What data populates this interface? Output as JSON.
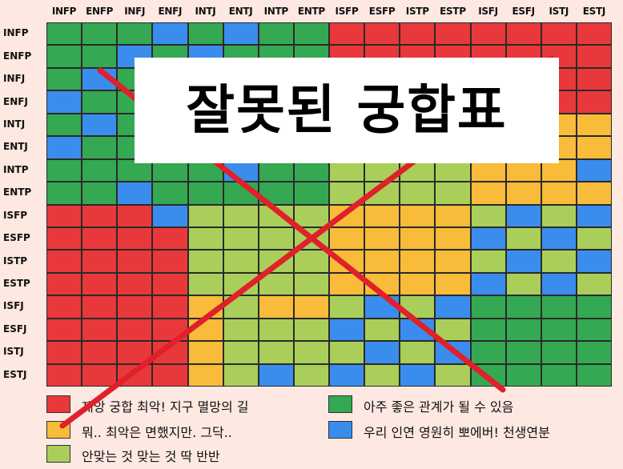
{
  "types": [
    "INFP",
    "ENFP",
    "INFJ",
    "ENFJ",
    "INTJ",
    "ENTJ",
    "INTP",
    "ENTP",
    "ISFP",
    "ESFP",
    "ISTP",
    "ESTP",
    "ISFJ",
    "ESFJ",
    "ISTJ",
    "ESTJ"
  ],
  "colors": {
    "R": "#e8383b",
    "O": "#f8bb3a",
    "L": "#a9cf5a",
    "G": "#34a853",
    "B": "#3b8ded"
  },
  "matrix": [
    "GGGBGBGGRRRRRRRR",
    "GGBGBGGGRRRRRRRR",
    "GBGGGGGBRRRRRRRR",
    "BGGGGGGGBRRRRRRR",
    "GBGGGGGBLLLLOOOO",
    "BGGGGGBGLLLLOOOO",
    "GGGGGBGGLLLLOOOB",
    "GGBGGGGGLLLLOOOO",
    "RRRBLLLLOOOOLBLB",
    "RRRRLLLLOOOOBLBL",
    "RRRRLLLLOOOOLBLB",
    "RRRRLLLLOOOOBLBL",
    "RRRROLOOLBLBGGGG",
    "RRRROLLLBLBLGGGG",
    "RRRROLLLLBLBGGGG",
    "RRRROLBLBLBLGGGG"
  ],
  "legend": [
    {
      "color": "#e8383b",
      "label": "재앙 궁합 최악! 지구 멸망의 길"
    },
    {
      "color": "#f8bb3a",
      "label": "뭐.. 최악은 면했지만. 그닥.."
    },
    {
      "color": "#a9cf5a",
      "label": "안맞는 것 맞는 것 딱 반반"
    },
    {
      "color": "#34a853",
      "label": "아주 좋은 관계가 될 수 있음"
    },
    {
      "color": "#3b8ded",
      "label": "우리 인연 영원히 뽀에버! 천생연분"
    }
  ],
  "overlay": {
    "text": "잘못된 궁합표"
  },
  "cross_color": "#e0202a"
}
